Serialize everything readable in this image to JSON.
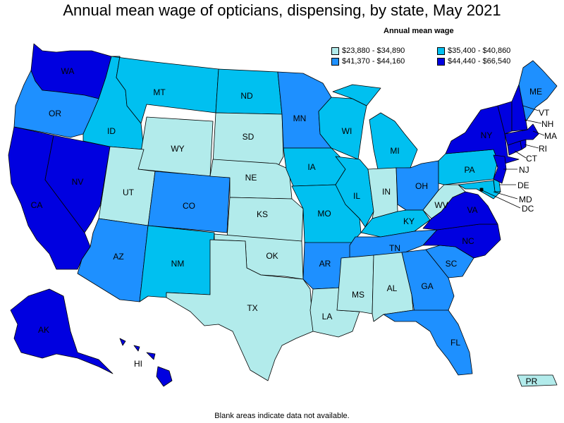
{
  "title": "Annual mean wage of opticians, dispensing, by state, May 2021",
  "legend": {
    "title": "Annual mean wage",
    "bins": [
      {
        "label": "$23,880 - $34,890",
        "color": "#b2ebeb"
      },
      {
        "label": "$35,400 - $40,860",
        "color": "#00c0f0"
      },
      {
        "label": "$41,370 - $44,160",
        "color": "#1e90ff"
      },
      {
        "label": "$44,440 - $66,540",
        "color": "#0000e0"
      }
    ]
  },
  "footnote": "Blank areas indicate data not available.",
  "states": [
    {
      "abbr": "WA",
      "bin": 3
    },
    {
      "abbr": "OR",
      "bin": 2
    },
    {
      "abbr": "CA",
      "bin": 3
    },
    {
      "abbr": "NV",
      "bin": 3
    },
    {
      "abbr": "ID",
      "bin": 1
    },
    {
      "abbr": "MT",
      "bin": 1
    },
    {
      "abbr": "WY",
      "bin": 0
    },
    {
      "abbr": "UT",
      "bin": 0
    },
    {
      "abbr": "AZ",
      "bin": 2
    },
    {
      "abbr": "CO",
      "bin": 2
    },
    {
      "abbr": "NM",
      "bin": 1
    },
    {
      "abbr": "ND",
      "bin": 1
    },
    {
      "abbr": "SD",
      "bin": 0
    },
    {
      "abbr": "NE",
      "bin": 0
    },
    {
      "abbr": "KS",
      "bin": 0
    },
    {
      "abbr": "OK",
      "bin": 0
    },
    {
      "abbr": "TX",
      "bin": 0
    },
    {
      "abbr": "MN",
      "bin": 2
    },
    {
      "abbr": "IA",
      "bin": 1
    },
    {
      "abbr": "MO",
      "bin": 1
    },
    {
      "abbr": "AR",
      "bin": 2
    },
    {
      "abbr": "LA",
      "bin": 0
    },
    {
      "abbr": "WI",
      "bin": 1
    },
    {
      "abbr": "IL",
      "bin": 1
    },
    {
      "abbr": "MI",
      "bin": 1
    },
    {
      "abbr": "IN",
      "bin": 0
    },
    {
      "abbr": "OH",
      "bin": 2
    },
    {
      "abbr": "KY",
      "bin": 1
    },
    {
      "abbr": "TN",
      "bin": 2
    },
    {
      "abbr": "MS",
      "bin": 0
    },
    {
      "abbr": "AL",
      "bin": 0
    },
    {
      "abbr": "GA",
      "bin": 2
    },
    {
      "abbr": "FL",
      "bin": 2
    },
    {
      "abbr": "SC",
      "bin": 2
    },
    {
      "abbr": "NC",
      "bin": 3
    },
    {
      "abbr": "VA",
      "bin": 3
    },
    {
      "abbr": "WV",
      "bin": 0
    },
    {
      "abbr": "PA",
      "bin": 1
    },
    {
      "abbr": "NY",
      "bin": 3
    },
    {
      "abbr": "NJ",
      "bin": 3
    },
    {
      "abbr": "DE",
      "bin": 1
    },
    {
      "abbr": "MD",
      "bin": 1
    },
    {
      "abbr": "DC",
      "bin": 3
    },
    {
      "abbr": "CT",
      "bin": 3
    },
    {
      "abbr": "RI",
      "bin": 3
    },
    {
      "abbr": "MA",
      "bin": 3
    },
    {
      "abbr": "VT",
      "bin": 3
    },
    {
      "abbr": "NH",
      "bin": 3
    },
    {
      "abbr": "ME",
      "bin": 2
    },
    {
      "abbr": "AK",
      "bin": 3
    },
    {
      "abbr": "HI",
      "bin": 3
    },
    {
      "abbr": "PR",
      "bin": 0
    }
  ]
}
